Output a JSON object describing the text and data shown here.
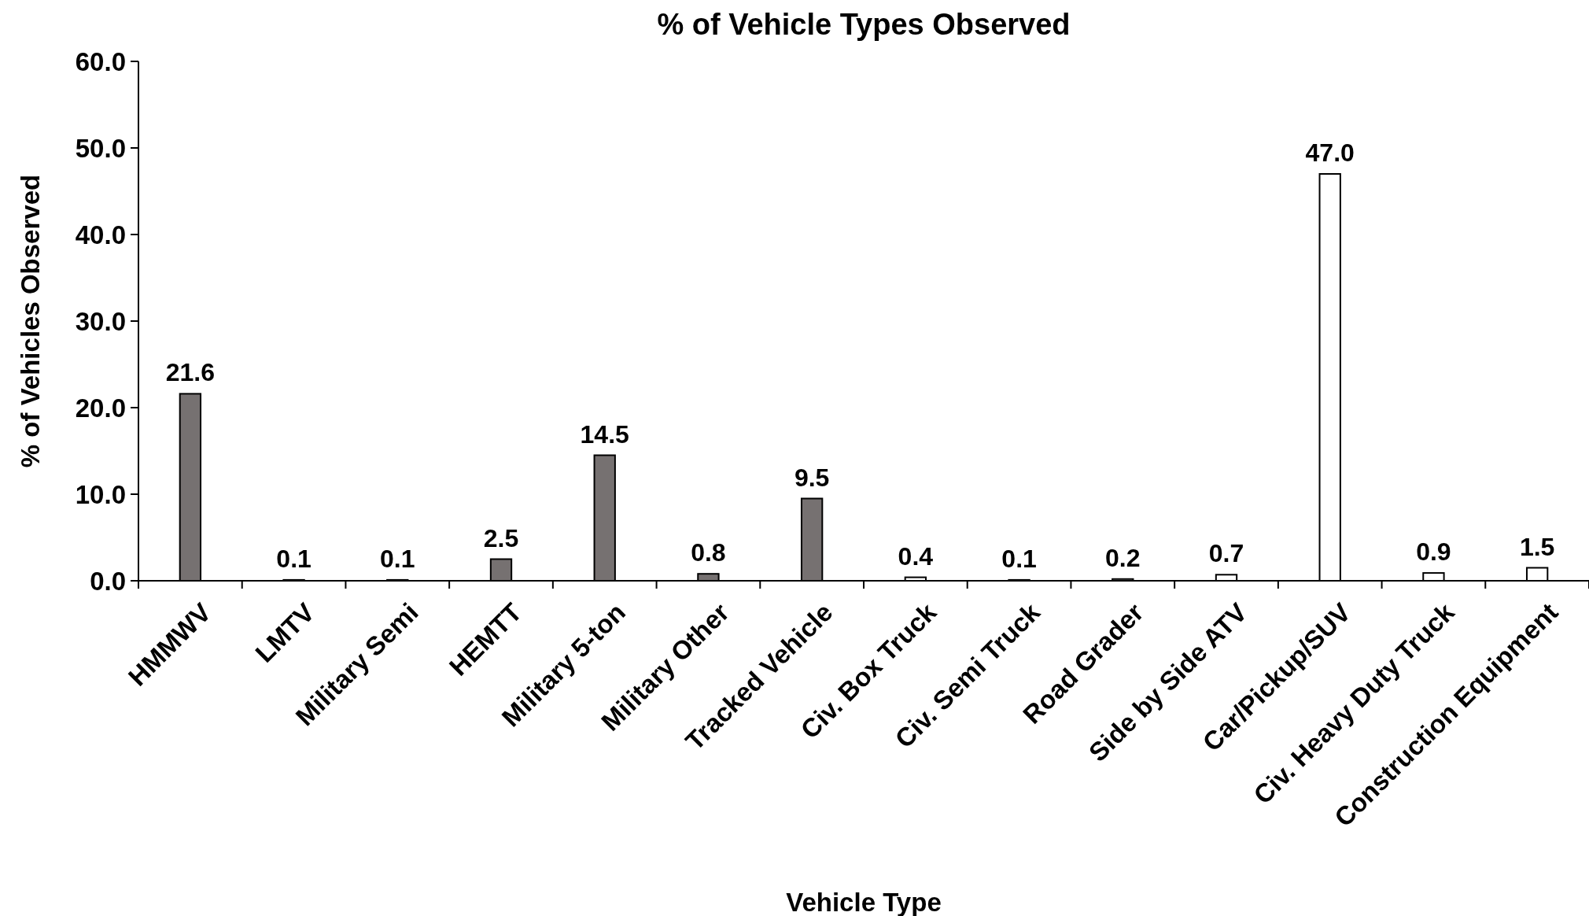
{
  "chart_data": {
    "type": "bar",
    "title": "% of Vehicle Types Observed",
    "xlabel": "Vehicle Type",
    "ylabel": "% of Vehicles Observed",
    "categories": [
      "HMMWV",
      "LMTV",
      "Military Semi",
      "HEMTT",
      "Military 5-ton",
      "Military Other",
      "Tracked Vehicle",
      "Civ. Box Truck",
      "Civ. Semi Truck",
      "Road Grader",
      "Side by Side ATV",
      "Car/Pickup/SUV",
      "Civ. Heavy Duty Truck",
      "Construction Equipment"
    ],
    "values": [
      21.6,
      0.1,
      0.1,
      2.5,
      14.5,
      0.8,
      9.5,
      0.4,
      0.1,
      0.2,
      0.7,
      47.0,
      0.9,
      1.5
    ],
    "value_labels": [
      "21.6",
      "0.1",
      "0.1",
      "2.5",
      "14.5",
      "0.8",
      "9.5",
      "0.4",
      "0.1",
      "0.2",
      "0.7",
      "47.0",
      "0.9",
      "1.5"
    ],
    "colors": [
      "#767171",
      "#767171",
      "#767171",
      "#767171",
      "#767171",
      "#767171",
      "#767171",
      "#ffffff",
      "#ffffff",
      "#ffffff",
      "#ffffff",
      "#ffffff",
      "#ffffff",
      "#ffffff"
    ],
    "ylim": [
      0,
      60
    ],
    "yticks": [
      {
        "value": 0,
        "label": "0.0"
      },
      {
        "value": 10,
        "label": "10.0"
      },
      {
        "value": 20,
        "label": "20.0"
      },
      {
        "value": 30,
        "label": "30.0"
      },
      {
        "value": 40,
        "label": "40.0"
      },
      {
        "value": 50,
        "label": "50.0"
      },
      {
        "value": 60,
        "label": "60.0"
      }
    ],
    "grid": false
  }
}
